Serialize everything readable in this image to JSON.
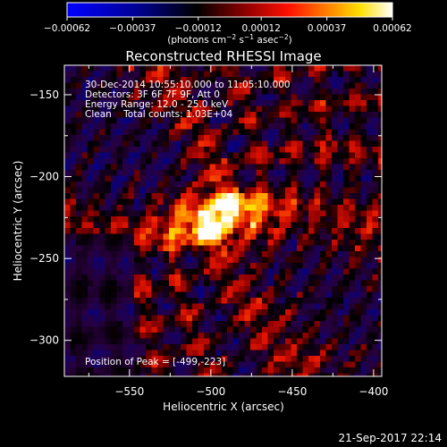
{
  "chart_data": {
    "type": "heatmap",
    "title": "Reconstructed RHESSI Image",
    "xlabel": "Heliocentric X (arcsec)",
    "ylabel": "Heliocentric Y (arcsec)",
    "xlim": [
      -590,
      -395
    ],
    "ylim": [
      -322,
      -132
    ],
    "x_ticks": [
      -550,
      -500,
      -450,
      -400
    ],
    "x_tick_labels": [
      "−550",
      "−500",
      "−450",
      "−400"
    ],
    "y_ticks": [
      -150,
      -200,
      -250,
      -300
    ],
    "y_tick_labels": [
      "−150",
      "−200",
      "−250",
      "−300"
    ],
    "colorbar": {
      "min": -0.00062,
      "max": 0.00062,
      "ticks": [
        -0.00062,
        -0.00037,
        -0.00012,
        0.00012,
        0.00037,
        0.00062
      ],
      "tick_labels": [
        "−0.00062",
        "−0.00037",
        "−0.00012",
        "0.00012",
        "0.00037",
        "0.00062"
      ],
      "unit_base": "(photons cm",
      "unit_exp1": "−2",
      "unit_mid1": " s",
      "unit_exp2": "−1",
      "unit_mid2": " asec",
      "unit_exp3": "−2",
      "unit_end": ")",
      "colormap": [
        "#0000ff",
        "#000080",
        "#000000",
        "#800000",
        "#ff0000",
        "#ff8000",
        "#ffff00",
        "#ffffff"
      ]
    },
    "info_lines": [
      "30-Dec-2014 10:55:10.000 to 11:05:10.000",
      "Detectors: 3F 6F 7F 9F, Att 0",
      "Energy Range: 12.0 - 25.0 keV",
      "Clean    Total counts: 1.03E+04"
    ],
    "peak_label": "Position of Peak = [-499,-223]",
    "peak": [
      -499,
      -223
    ],
    "source_peak_value": 0.00062
  },
  "footer": {
    "timestamp": "21-Sep-2017 22:14"
  }
}
